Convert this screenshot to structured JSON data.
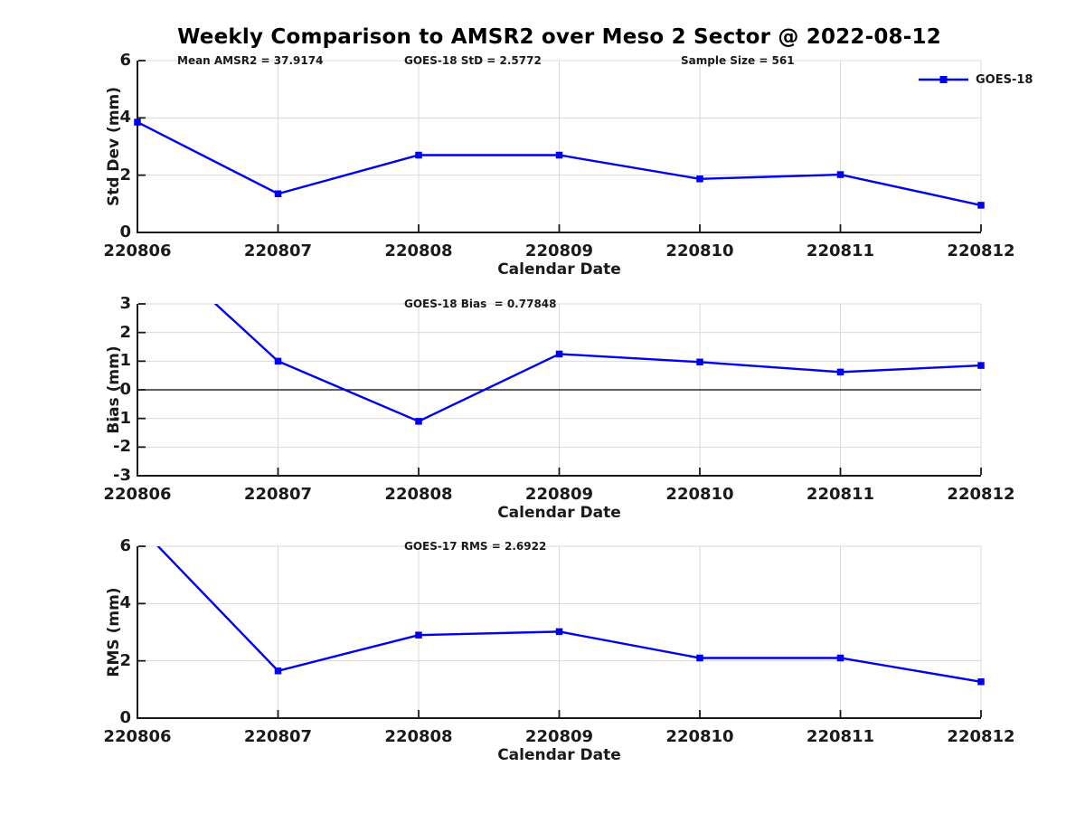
{
  "title": "Weekly Comparison to AMSR2 over Meso 2 Sector @ 2022-08-12",
  "colors": {
    "line": "#0000ee",
    "grid": "#d9d9d9",
    "axis": "#1a1a1a",
    "zero_line": "#000000",
    "text": "#1a1a1a"
  },
  "chart_data": [
    {
      "name": "std-dev-panel",
      "type": "line",
      "categories": [
        "220806",
        "220807",
        "220808",
        "220809",
        "220810",
        "220811",
        "220812"
      ],
      "series": [
        {
          "name": "GOES-18",
          "color": "#0000ee",
          "marker": "square",
          "values": [
            3.85,
            1.35,
            2.7,
            2.7,
            1.87,
            2.02,
            0.95
          ]
        }
      ],
      "ylabel": "Std Dev (mm)",
      "xlabel": "Calendar Date",
      "ylim": [
        0,
        6
      ],
      "yticks": [
        0,
        2,
        4,
        6
      ],
      "grid": true,
      "annotations": [
        {
          "text": "Mean AMSR2 = 37.9174"
        },
        {
          "text": "GOES-18 StD = 2.5772"
        },
        {
          "text": "Sample Size = 561"
        }
      ],
      "legend": {
        "label": "GOES-18",
        "position": "top-right"
      }
    },
    {
      "name": "bias-panel",
      "type": "line",
      "categories": [
        "220806",
        "220807",
        "220808",
        "220809",
        "220810",
        "220811",
        "220812"
      ],
      "series": [
        {
          "name": "GOES-18",
          "color": "#0000ee",
          "marker": "square",
          "values": [
            5.5,
            1.0,
            -1.1,
            1.25,
            0.97,
            0.62,
            0.85
          ]
        }
      ],
      "ylabel": "Bias (mm)",
      "xlabel": "Calendar Date",
      "ylim": [
        -3,
        3
      ],
      "yticks": [
        -3,
        -2,
        -1,
        0,
        1,
        2,
        3
      ],
      "grid": true,
      "zero_line": true,
      "annotations": [
        {
          "text": "GOES-18 Bias  = 0.77848"
        }
      ]
    },
    {
      "name": "rms-panel",
      "type": "line",
      "categories": [
        "220806",
        "220807",
        "220808",
        "220809",
        "220810",
        "220811",
        "220812"
      ],
      "series": [
        {
          "name": "GOES-17",
          "color": "#0000ee",
          "marker": "square",
          "values": [
            6.75,
            1.65,
            2.9,
            3.02,
            2.1,
            2.1,
            1.27
          ]
        }
      ],
      "ylabel": "RMS (mm)",
      "xlabel": "Calendar Date",
      "ylim": [
        0,
        6
      ],
      "yticks": [
        0,
        2,
        4,
        6
      ],
      "grid": true,
      "annotations": [
        {
          "text": "GOES-17 RMS = 2.6922"
        }
      ]
    }
  ]
}
